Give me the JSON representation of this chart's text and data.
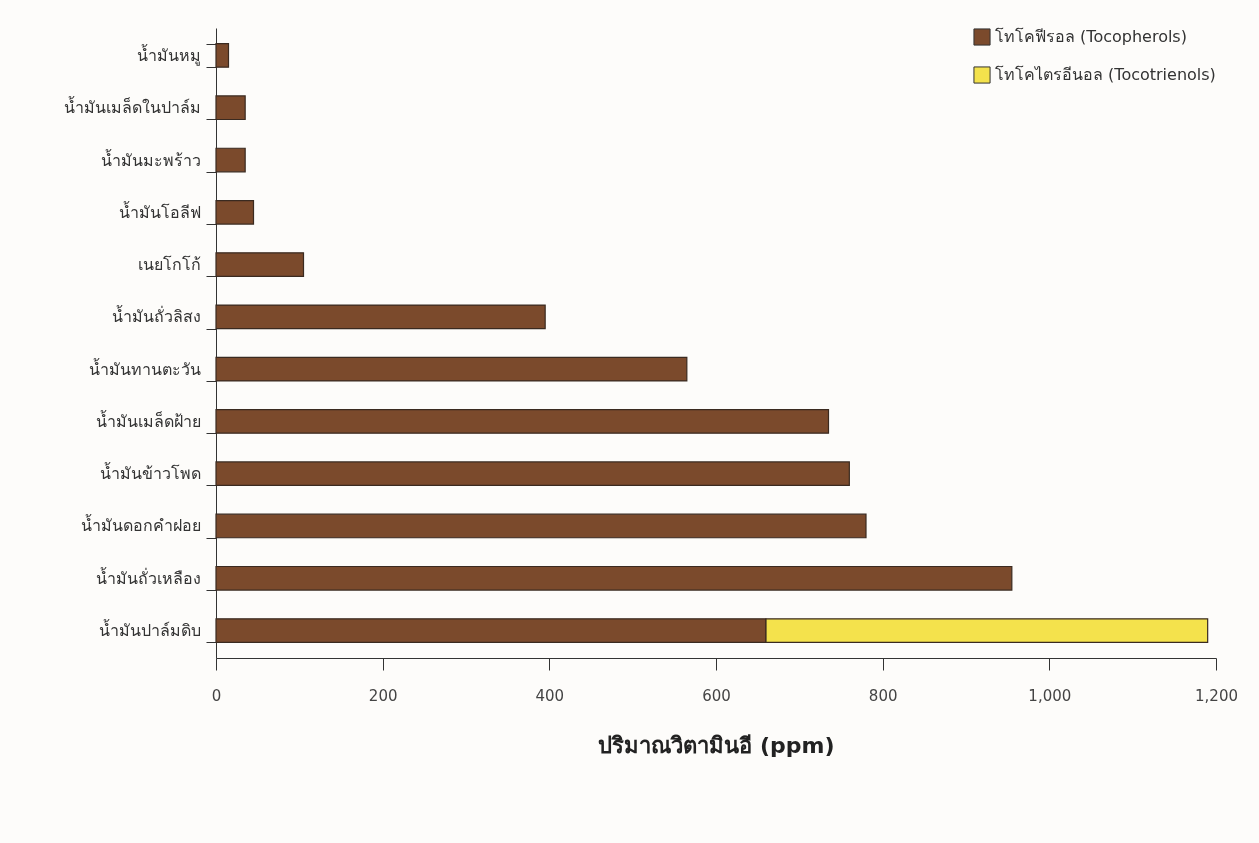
{
  "chart_data": {
    "type": "bar",
    "orientation": "horizontal",
    "stacked": true,
    "xlabel": "ปริมาณวิตามินอี (ppm)",
    "categories": [
      "น้ำมันหมู",
      "น้ำมันเมล็ดในปาล์ม",
      "น้ำมันมะพร้าว",
      "น้ำมันโอลีฟ",
      "เนยโกโก้",
      "น้ำมันถั่วลิสง",
      "น้ำมันทานตะวัน",
      "น้ำมันเมล็ดฝ้าย",
      "น้ำมันข้าวโพด",
      "น้ำมันดอกคำฝอย",
      "น้ำมันถั่วเหลือง",
      "น้ำมันปาล์มดิบ"
    ],
    "series": [
      {
        "name": "โทโคฟีรอล (Tocopherols)",
        "color": "#7b4a2c",
        "values": [
          15,
          35,
          35,
          45,
          105,
          395,
          565,
          735,
          760,
          780,
          955,
          660
        ]
      },
      {
        "name": "โทโคไตรอีนอล (Tocotrienols)",
        "color": "#f4e24c",
        "values": [
          null,
          null,
          null,
          null,
          null,
          null,
          null,
          null,
          null,
          null,
          null,
          530
        ]
      }
    ],
    "xlim": [
      0,
      1200
    ],
    "xticks": [
      0,
      200,
      400,
      600,
      800,
      {
        "value": 1000,
        "label": "1,000"
      },
      {
        "value": 1200,
        "label": "1,200"
      }
    ],
    "grid": false,
    "legend": "top right"
  }
}
